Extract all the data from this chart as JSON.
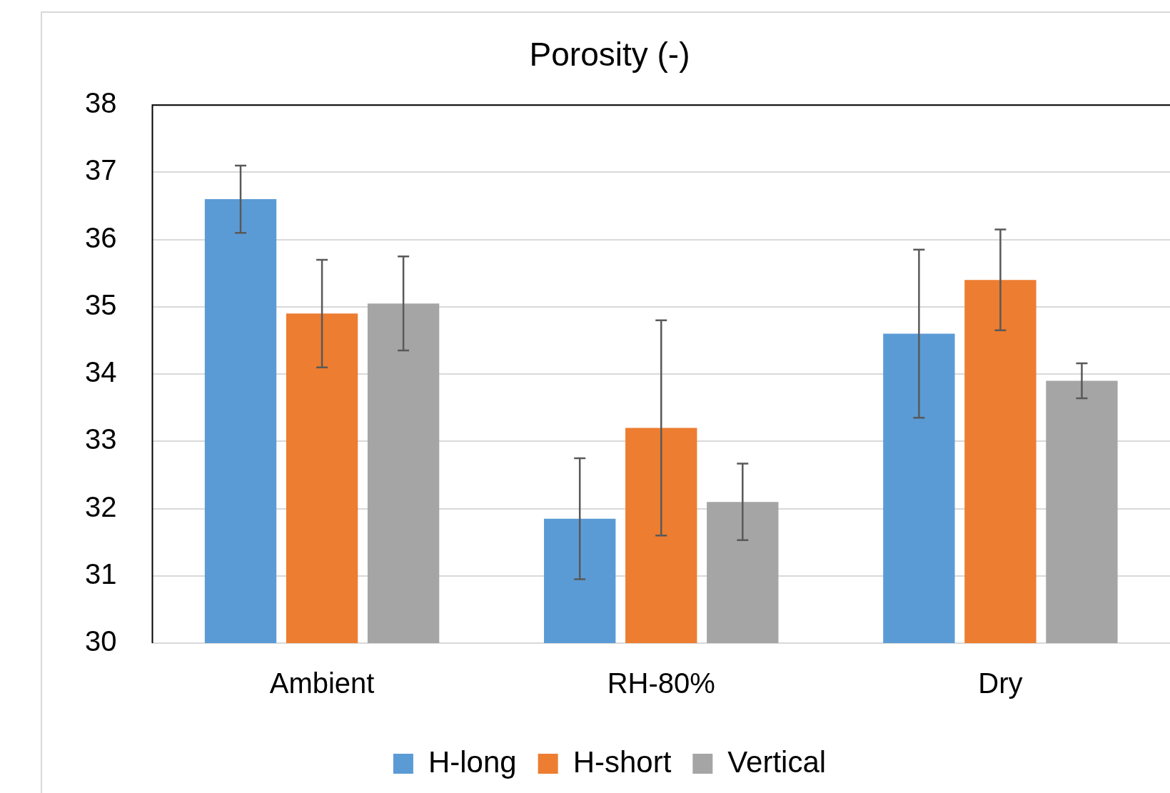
{
  "chart_data": {
    "type": "bar",
    "title": "Porosity (-)",
    "categories": [
      "Ambient",
      "RH-80%",
      "Dry"
    ],
    "series": [
      {
        "name": "H-long",
        "color": "#5b9bd5",
        "values": [
          36.6,
          31.85,
          34.6
        ],
        "errors": [
          0.5,
          0.9,
          1.25
        ]
      },
      {
        "name": "H-short",
        "color": "#ed7d31",
        "values": [
          34.9,
          33.2,
          35.4
        ],
        "errors": [
          0.8,
          1.6,
          0.75
        ]
      },
      {
        "name": "Vertical",
        "color": "#a5a5a5",
        "values": [
          35.05,
          32.1,
          33.9
        ],
        "errors": [
          0.7,
          0.57,
          0.26
        ]
      }
    ],
    "ylim": [
      30,
      38
    ],
    "yticks": [
      30,
      31,
      32,
      33,
      34,
      35,
      36,
      37,
      38
    ],
    "grid": "y",
    "legend": "bottom"
  }
}
